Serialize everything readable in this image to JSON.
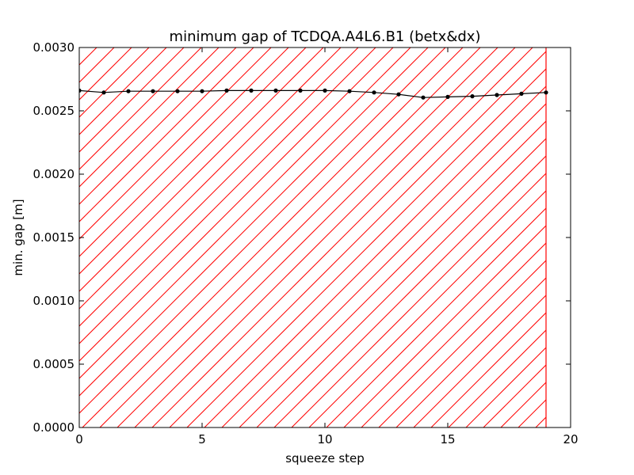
{
  "chart_data": {
    "type": "line",
    "title": "minimum gap of TCDQA.A4L6.B1 (betx&dx)",
    "xlabel": "squeeze step",
    "ylabel": "min. gap [m]",
    "xlim": [
      0,
      20
    ],
    "ylim": [
      0,
      0.003
    ],
    "xticks": [
      "0",
      "5",
      "10",
      "15",
      "20"
    ],
    "yticks": [
      "0.0000",
      "0.0005",
      "0.0010",
      "0.0015",
      "0.0020",
      "0.0025",
      "0.0030"
    ],
    "grid": false,
    "series": [
      {
        "color": "#000000",
        "marker": "circle",
        "x": [
          0,
          1,
          2,
          3,
          4,
          5,
          6,
          7,
          8,
          9,
          10,
          11,
          12,
          13,
          14,
          15,
          16,
          17,
          18,
          19
        ],
        "values": [
          0.00266,
          0.002645,
          0.002655,
          0.002655,
          0.002655,
          0.002655,
          0.00266,
          0.00266,
          0.00266,
          0.00266,
          0.00266,
          0.002655,
          0.002645,
          0.00263,
          0.002605,
          0.00261,
          0.002615,
          0.002625,
          0.002635,
          0.002645
        ]
      }
    ],
    "shaded_region": {
      "x_range": [
        0,
        19
      ],
      "pattern": "diagonal-hatch",
      "color": "#ff0000"
    }
  }
}
